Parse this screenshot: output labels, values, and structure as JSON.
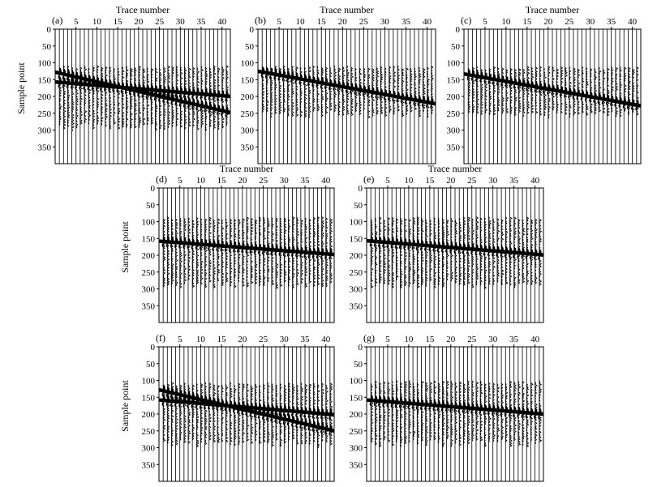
{
  "figure": {
    "background": "#ffffff",
    "ink": "#000000"
  },
  "chart_data": [
    {
      "type": "seismic-wiggle",
      "panel_label": "(a)",
      "xlabel": "Trace number",
      "ylabel": "Sample point",
      "x_ticks": [
        5,
        10,
        15,
        20,
        25,
        30,
        35,
        40
      ],
      "y_ticks": [
        0,
        50,
        100,
        150,
        200,
        250,
        300,
        350
      ],
      "xlim": [
        0,
        42
      ],
      "ylim": [
        0,
        400
      ],
      "traces": 41,
      "events": [
        {
          "t_start": 128,
          "t_end": 248
        },
        {
          "t_start": 157,
          "t_end": 200
        }
      ],
      "noise_window": [
        108,
        300
      ]
    },
    {
      "type": "seismic-wiggle",
      "panel_label": "(b)",
      "xlabel": "Trace number",
      "ylabel": "",
      "x_ticks": [
        5,
        10,
        15,
        20,
        25,
        30,
        35,
        40
      ],
      "y_ticks": [
        0,
        50,
        100,
        150,
        200,
        250,
        300,
        350
      ],
      "xlim": [
        0,
        42
      ],
      "ylim": [
        0,
        400
      ],
      "traces": 41,
      "events": [
        {
          "t_start": 125,
          "t_end": 222
        }
      ],
      "noise_window": [
        108,
        260
      ]
    },
    {
      "type": "seismic-wiggle",
      "panel_label": "(c)",
      "xlabel": "Trace number",
      "ylabel": "",
      "x_ticks": [
        5,
        10,
        15,
        20,
        25,
        30,
        35,
        40
      ],
      "y_ticks": [
        0,
        50,
        100,
        150,
        200,
        250,
        300,
        350
      ],
      "xlim": [
        0,
        42
      ],
      "ylim": [
        0,
        400
      ],
      "traces": 41,
      "events": [
        {
          "t_start": 133,
          "t_end": 228
        }
      ],
      "noise_window": [
        110,
        260
      ]
    },
    {
      "type": "seismic-wiggle",
      "panel_label": "(d)",
      "xlabel": "Trace number",
      "ylabel": "Sample point",
      "x_ticks": [
        5,
        10,
        15,
        20,
        25,
        30,
        35,
        40
      ],
      "y_ticks": [
        0,
        50,
        100,
        150,
        200,
        250,
        300,
        350
      ],
      "xlim": [
        0,
        42
      ],
      "ylim": [
        0,
        400
      ],
      "traces": 41,
      "events": [
        {
          "t_start": 158,
          "t_end": 198
        }
      ],
      "noise_window": [
        85,
        295
      ]
    },
    {
      "type": "seismic-wiggle",
      "panel_label": "(e)",
      "xlabel": "Trace number",
      "ylabel": "",
      "x_ticks": [
        5,
        10,
        15,
        20,
        25,
        30,
        35,
        40
      ],
      "y_ticks": [
        0,
        50,
        100,
        150,
        200,
        250,
        300,
        350
      ],
      "xlim": [
        0,
        42
      ],
      "ylim": [
        0,
        400
      ],
      "traces": 41,
      "events": [
        {
          "t_start": 157,
          "t_end": 199
        }
      ],
      "noise_window": [
        85,
        295
      ]
    },
    {
      "type": "seismic-wiggle",
      "panel_label": "(f)",
      "xlabel": "",
      "ylabel": "Sample point",
      "x_ticks": [
        5,
        10,
        15,
        20,
        25,
        30,
        35,
        40
      ],
      "y_ticks": [
        0,
        50,
        100,
        150,
        200,
        250,
        300,
        350
      ],
      "xlim": [
        0,
        42
      ],
      "ylim": [
        0,
        400
      ],
      "traces": 41,
      "events": [
        {
          "t_start": 128,
          "t_end": 250
        },
        {
          "t_start": 158,
          "t_end": 202
        }
      ],
      "noise_window": [
        105,
        295
      ]
    },
    {
      "type": "seismic-wiggle",
      "panel_label": "(g)",
      "xlabel": "",
      "ylabel": "",
      "x_ticks": [
        5,
        10,
        15,
        20,
        25,
        30,
        35,
        40
      ],
      "y_ticks": [
        0,
        50,
        100,
        150,
        200,
        250,
        300,
        350
      ],
      "xlim": [
        0,
        42
      ],
      "ylim": [
        0,
        400
      ],
      "traces": 41,
      "events": [
        {
          "t_start": 158,
          "t_end": 200
        }
      ],
      "noise_window": [
        100,
        295
      ]
    }
  ]
}
